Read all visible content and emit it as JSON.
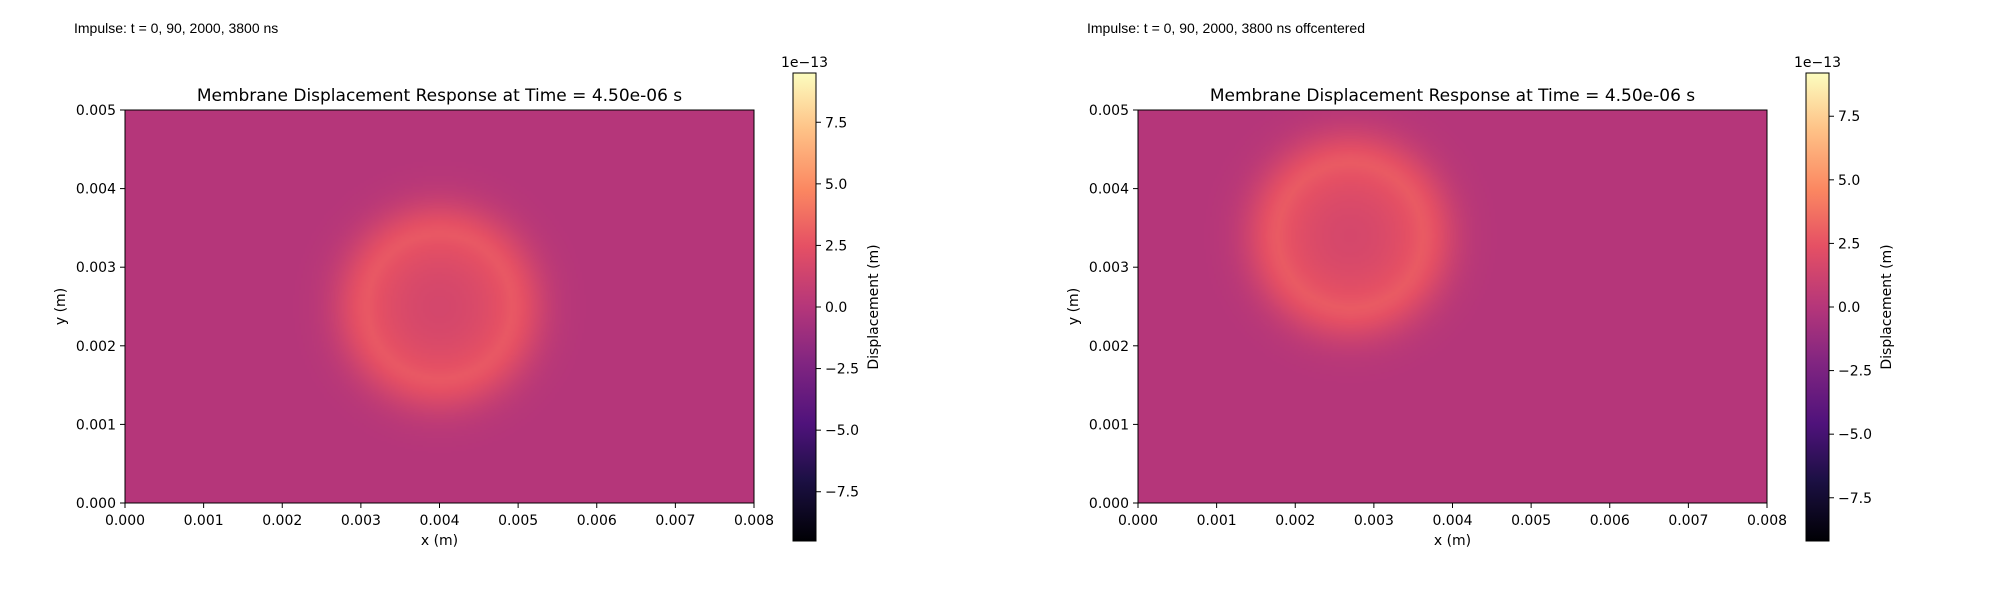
{
  "figure": {
    "panels": [
      {
        "caption": "Impulse: t = 0, 90, 2000, 3800 ns",
        "title": "Membrane Displacement Response at Time = 4.50e-06 s",
        "xlabel": "x (m)",
        "ylabel": "y (m)",
        "colorbar_label": "Displacement (m)",
        "colorbar_multiplier": "1e−13"
      },
      {
        "caption": "Impulse: t = 0, 90, 2000, 3800 ns offcentered",
        "title": "Membrane Displacement Response at Time = 4.50e-06 s",
        "xlabel": "x (m)",
        "ylabel": "y (m)",
        "colorbar_label": "Displacement (m)",
        "colorbar_multiplier": "1e−13"
      }
    ]
  },
  "chart_data": [
    {
      "type": "heatmap",
      "title": "Membrane Displacement Response at Time = 4.50e-06 s",
      "xlabel": "x (m)",
      "ylabel": "y (m)",
      "xlim": [
        0.0,
        0.008
      ],
      "ylim": [
        0.0,
        0.005
      ],
      "xticks": [
        "0.000",
        "0.001",
        "0.002",
        "0.003",
        "0.004",
        "0.005",
        "0.006",
        "0.007",
        "0.008"
      ],
      "yticks": [
        "0.000",
        "0.001",
        "0.002",
        "0.003",
        "0.004",
        "0.005"
      ],
      "colormap": "magma",
      "colorbar": {
        "label": "Displacement (m)",
        "multiplier": "1e−13",
        "range": [
          -9.5,
          9.5
        ],
        "ticks": [
          "−7.5",
          "−5.0",
          "−2.5",
          "0.0",
          "2.5",
          "5.0",
          "7.5"
        ]
      },
      "field": {
        "background": 0.0,
        "ring_center": [
          0.004,
          0.0025
        ],
        "ring_radius": 0.0009,
        "ring_peak": 2.8,
        "center_value": 1.6,
        "outer_extent_radius": 0.0017
      }
    },
    {
      "type": "heatmap",
      "title": "Membrane Displacement Response at Time = 4.50e-06 s",
      "xlabel": "x (m)",
      "ylabel": "y (m)",
      "xlim": [
        0.0,
        0.008
      ],
      "ylim": [
        0.0,
        0.005
      ],
      "xticks": [
        "0.000",
        "0.001",
        "0.002",
        "0.003",
        "0.004",
        "0.005",
        "0.006",
        "0.007",
        "0.008"
      ],
      "yticks": [
        "0.000",
        "0.001",
        "0.002",
        "0.003",
        "0.004",
        "0.005"
      ],
      "colormap": "magma",
      "colorbar": {
        "label": "Displacement (m)",
        "multiplier": "1e−13",
        "range": [
          -9.2,
          9.2
        ],
        "ticks": [
          "−7.5",
          "−5.0",
          "−2.5",
          "0.0",
          "2.5",
          "5.0",
          "7.5"
        ]
      },
      "field": {
        "background": 0.0,
        "ring_center": [
          0.0027,
          0.0034
        ],
        "ring_radius": 0.0009,
        "ring_peak": 2.8,
        "center_value": 1.6,
        "outer_extent_radius": 0.0017
      }
    }
  ]
}
